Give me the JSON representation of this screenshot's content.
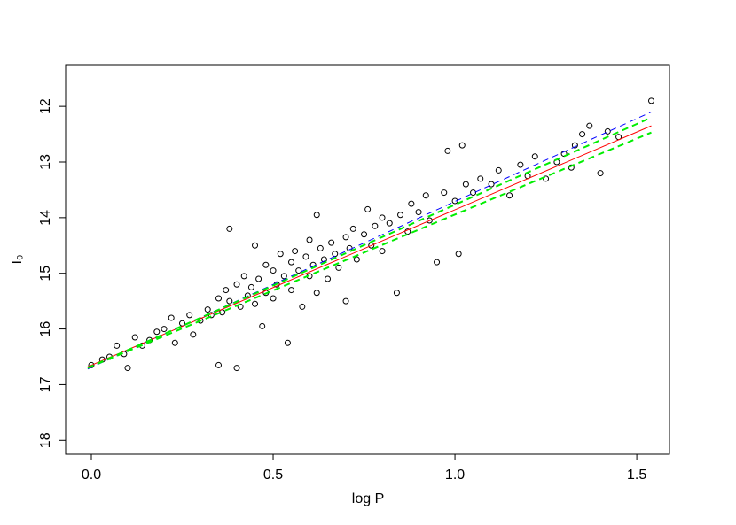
{
  "chart_data": {
    "type": "scatter",
    "xlabel": "log P",
    "ylabel": "I₀",
    "xlim": [
      -0.0707,
      1.59
    ],
    "ylim": [
      18.25,
      11.25
    ],
    "xticks": [
      {
        "value": 0,
        "label": "0.0"
      },
      0.5,
      {
        "value": 1,
        "label": "1.0"
      },
      1.5
    ],
    "yticks": [
      12,
      13,
      14,
      15,
      16,
      17,
      18
    ],
    "series": [
      {
        "style": "points",
        "color": "#000000",
        "x": [
          0.0,
          0.03,
          0.05,
          0.07,
          0.09,
          0.1,
          0.12,
          0.14,
          0.16,
          0.18,
          0.2,
          0.22,
          0.23,
          0.25,
          0.27,
          0.28,
          0.3,
          0.32,
          0.33,
          0.35,
          0.35,
          0.36,
          0.37,
          0.38,
          0.38,
          0.4,
          0.4,
          0.41,
          0.42,
          0.43,
          0.44,
          0.45,
          0.45,
          0.46,
          0.47,
          0.48,
          0.48,
          0.5,
          0.5,
          0.51,
          0.52,
          0.53,
          0.54,
          0.55,
          0.55,
          0.56,
          0.57,
          0.58,
          0.59,
          0.6,
          0.6,
          0.61,
          0.62,
          0.62,
          0.63,
          0.64,
          0.65,
          0.66,
          0.67,
          0.68,
          0.7,
          0.7,
          0.71,
          0.72,
          0.73,
          0.75,
          0.76,
          0.77,
          0.78,
          0.8,
          0.8,
          0.82,
          0.84,
          0.85,
          0.87,
          0.88,
          0.9,
          0.92,
          0.93,
          0.95,
          0.97,
          0.98,
          1.0,
          1.01,
          1.02,
          1.03,
          1.05,
          1.07,
          1.1,
          1.12,
          1.15,
          1.18,
          1.2,
          1.22,
          1.25,
          1.28,
          1.3,
          1.32,
          1.33,
          1.35,
          1.37,
          1.4,
          1.42,
          1.45,
          1.54
        ],
        "values": [
          16.65,
          16.55,
          16.5,
          16.3,
          16.45,
          16.7,
          16.15,
          16.3,
          16.2,
          16.05,
          16.0,
          15.8,
          16.25,
          15.9,
          15.75,
          16.1,
          15.85,
          15.65,
          15.75,
          15.45,
          16.65,
          15.7,
          15.3,
          14.2,
          15.5,
          15.2,
          16.7,
          15.6,
          15.05,
          15.4,
          15.25,
          14.5,
          15.55,
          15.1,
          15.95,
          14.85,
          15.35,
          14.95,
          15.45,
          15.2,
          14.65,
          15.05,
          16.25,
          14.8,
          15.3,
          14.6,
          14.95,
          15.6,
          14.7,
          14.4,
          15.05,
          14.85,
          13.95,
          15.35,
          14.55,
          14.75,
          15.1,
          14.45,
          14.65,
          14.9,
          14.35,
          15.5,
          14.55,
          14.2,
          14.75,
          14.3,
          13.85,
          14.5,
          14.15,
          14.0,
          14.6,
          14.1,
          15.35,
          13.95,
          14.25,
          13.75,
          13.9,
          13.6,
          14.05,
          14.8,
          13.55,
          12.8,
          13.7,
          14.65,
          12.7,
          13.4,
          13.55,
          13.3,
          13.4,
          13.15,
          13.6,
          13.05,
          13.25,
          12.9,
          13.3,
          13.0,
          12.85,
          13.1,
          12.7,
          12.5,
          12.35,
          13.2,
          12.45,
          12.55,
          11.9
        ]
      },
      {
        "style": "solid",
        "color": "#ff0000",
        "width": 1,
        "x": [
          -0.01,
          1.54
        ],
        "values": [
          16.68,
          12.35
        ]
      },
      {
        "style": "dashed",
        "color": "#0000ff",
        "width": 1,
        "x": [
          -0.01,
          1.54
        ],
        "values": [
          16.72,
          12.1
        ]
      },
      {
        "style": "dashed",
        "color": "#00ee00",
        "width": 2,
        "x": [
          -0.01,
          1.54
        ],
        "values": [
          16.7,
          12.2
        ]
      },
      {
        "style": "dashed",
        "color": "#00ee00",
        "width": 2,
        "x": [
          -0.01,
          1.54
        ],
        "values": [
          16.7,
          12.47
        ]
      }
    ]
  }
}
